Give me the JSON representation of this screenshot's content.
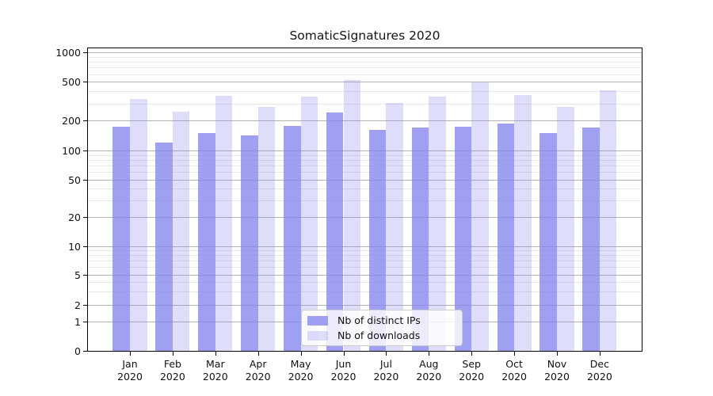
{
  "chart_data": {
    "type": "bar",
    "title": "SomaticSignatures 2020",
    "categories": [
      "Jan",
      "Feb",
      "Mar",
      "Apr",
      "May",
      "Jun",
      "Jul",
      "Aug",
      "Sep",
      "Oct",
      "Nov",
      "Dec"
    ],
    "category_year": "2020",
    "series": [
      {
        "name": "Nb of distinct IPs",
        "base_color": "#8585ef",
        "alpha": 0.78,
        "values": [
          178,
          123,
          154,
          145,
          180,
          248,
          163,
          173,
          177,
          192,
          154,
          175
        ]
      },
      {
        "name": "Nb of downloads",
        "base_color": "#8585ef",
        "alpha": 0.27,
        "values": [
          342,
          251,
          369,
          282,
          362,
          530,
          309,
          362,
          500,
          370,
          281,
          421
        ]
      }
    ],
    "xlabel": "",
    "ylabel": "",
    "yscale": "symlog",
    "y_major_ticks": [
      0,
      1,
      2,
      5,
      10,
      20,
      50,
      100,
      200,
      500,
      1000
    ],
    "y_minor_ticks": [
      3,
      4,
      6,
      7,
      8,
      9,
      30,
      40,
      60,
      70,
      80,
      90,
      300,
      400,
      600,
      700,
      800,
      900
    ],
    "ylim": [
      0,
      1150
    ],
    "grid": true,
    "legend_position": "lower center",
    "colors": {
      "grid_major": "#b3b3b3",
      "grid_minor": "#e7e7e7",
      "spine": "#000000",
      "bar_ips_rendered": "#a0a0f3",
      "bar_downloads_rendered": "#dedefb"
    }
  }
}
